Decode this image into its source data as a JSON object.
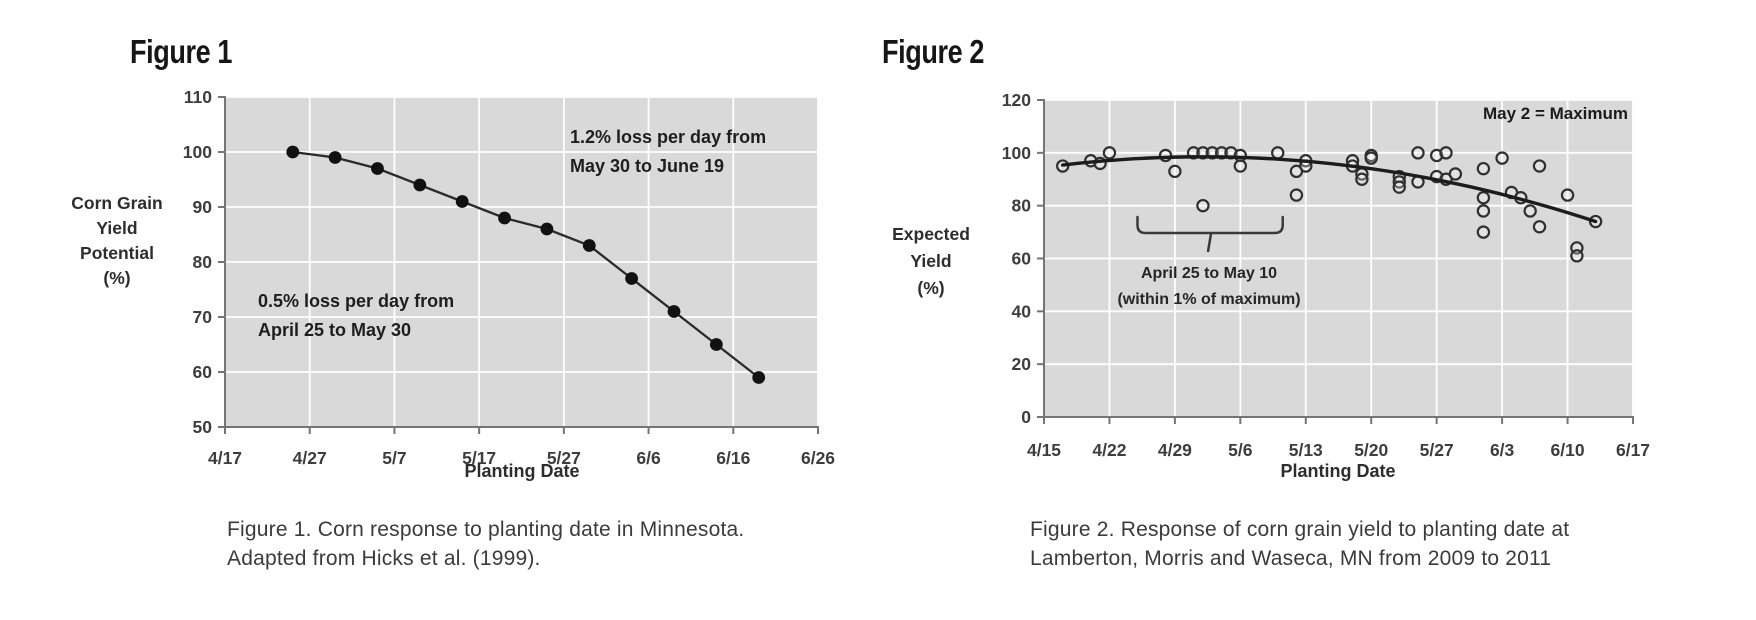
{
  "fig1": {
    "heading": "Figure 1",
    "y_axis_label_lines": [
      "Corn Grain",
      "Yield",
      "Potential",
      "(%)"
    ],
    "x_axis_label": "Planting Date",
    "annotation_upper_lines": [
      "1.2% loss per day from",
      "May 30 to June 19"
    ],
    "annotation_lower_lines": [
      "0.5% loss per day from",
      "April 25 to May 30"
    ],
    "caption_lines": [
      "Figure 1. Corn response to planting date in Minnesota.",
      "Adapted from Hicks et al. (1999)."
    ]
  },
  "fig2": {
    "heading": "Figure 2",
    "y_axis_label_lines": [
      "Expected",
      "Yield",
      "(%)"
    ],
    "x_axis_label": "Planting Date",
    "annotation_max": "May 2 = Maximum",
    "annotation_bracket_lines": [
      "April 25 to May 10",
      "(within 1% of maximum)"
    ],
    "caption_lines": [
      "Figure 2. Response of corn grain yield to planting date at",
      "Lamberton, Morris and Waseca, MN from 2009 to 2011"
    ]
  },
  "colors": {
    "plot_background": "#d9d9d9",
    "gridline": "#ffffff",
    "axis": "#757575",
    "tick_label": "#3d3d3d",
    "line_series": "#2a2a2a",
    "marker_fill": "#111111",
    "scatter_stroke": "#303030",
    "trend_line": "#1c1c1c",
    "brace": "#3a3a3a"
  },
  "chart_data": [
    {
      "id": "figure1",
      "type": "line",
      "title": "Figure 1",
      "xlabel": "Planting Date",
      "ylabel": "Corn Grain Yield Potential (%)",
      "x_tick_labels": [
        "4/17",
        "4/27",
        "5/7",
        "5/17",
        "5/27",
        "6/6",
        "6/16",
        "6/26"
      ],
      "y_ticks": [
        50,
        60,
        70,
        80,
        90,
        100,
        110
      ],
      "ylim": [
        50,
        110
      ],
      "xlim_dates": [
        "4/17",
        "6/26"
      ],
      "grid": true,
      "legend": "none",
      "series": [
        {
          "name": "Corn grain yield potential",
          "x": [
            "4/25",
            "4/30",
            "5/5",
            "5/10",
            "5/15",
            "5/20",
            "5/25",
            "5/30",
            "6/4",
            "6/9",
            "6/14",
            "6/19"
          ],
          "values": [
            100,
            99,
            97,
            94,
            91,
            88,
            86,
            83,
            77,
            71,
            65,
            59
          ]
        }
      ],
      "annotations": [
        "1.2% loss per day from May 30 to June 19",
        "0.5% loss per day from April 25 to May 30"
      ]
    },
    {
      "id": "figure2",
      "type": "scatter",
      "title": "Figure 2",
      "xlabel": "Planting Date",
      "ylabel": "Expected Yield (%)",
      "x_tick_labels": [
        "4/15",
        "4/22",
        "4/29",
        "5/6",
        "5/13",
        "5/20",
        "5/27",
        "6/3",
        "6/10",
        "6/17"
      ],
      "y_ticks": [
        0,
        20,
        40,
        60,
        80,
        100,
        120
      ],
      "ylim": [
        0,
        120
      ],
      "xlim_dates": [
        "4/15",
        "6/17"
      ],
      "grid": true,
      "legend": "none",
      "points": [
        [
          "4/17",
          95
        ],
        [
          "4/20",
          97
        ],
        [
          "4/21",
          96
        ],
        [
          "4/22",
          100
        ],
        [
          "4/28",
          99
        ],
        [
          "4/29",
          93
        ],
        [
          "5/1",
          100
        ],
        [
          "5/2",
          100
        ],
        [
          "5/3",
          100
        ],
        [
          "5/4",
          100
        ],
        [
          "5/5",
          100
        ],
        [
          "5/2",
          80
        ],
        [
          "5/6",
          99
        ],
        [
          "5/6",
          95
        ],
        [
          "5/10",
          100
        ],
        [
          "5/12",
          93
        ],
        [
          "5/13",
          97
        ],
        [
          "5/13",
          95
        ],
        [
          "5/12",
          84
        ],
        [
          "5/18",
          97
        ],
        [
          "5/18",
          95
        ],
        [
          "5/19",
          92
        ],
        [
          "5/19",
          90
        ],
        [
          "5/20",
          99
        ],
        [
          "5/20",
          98
        ],
        [
          "5/23",
          91
        ],
        [
          "5/23",
          89
        ],
        [
          "5/23",
          87
        ],
        [
          "5/25",
          100
        ],
        [
          "5/25",
          89
        ],
        [
          "5/27",
          99
        ],
        [
          "5/28",
          100
        ],
        [
          "5/27",
          91
        ],
        [
          "5/28",
          90
        ],
        [
          "5/29",
          92
        ],
        [
          "6/1",
          94
        ],
        [
          "6/1",
          83
        ],
        [
          "6/1",
          78
        ],
        [
          "6/1",
          70
        ],
        [
          "6/3",
          98
        ],
        [
          "6/4",
          85
        ],
        [
          "6/5",
          83
        ],
        [
          "6/6",
          78
        ],
        [
          "6/7",
          95
        ],
        [
          "6/7",
          72
        ],
        [
          "6/10",
          84
        ],
        [
          "6/11",
          64
        ],
        [
          "6/11",
          61
        ],
        [
          "6/13",
          74
        ]
      ],
      "trend": {
        "shape": "quadratic",
        "start_date": "4/17",
        "end_date": "6/13",
        "max_date": "5/2",
        "max_value": 98.5,
        "end_value": 74
      },
      "bracket_range": {
        "from": "4/25",
        "to": "5/10"
      },
      "annotations": [
        "May 2 = Maximum",
        "April 25 to May 10 (within 1% of maximum)"
      ]
    }
  ]
}
